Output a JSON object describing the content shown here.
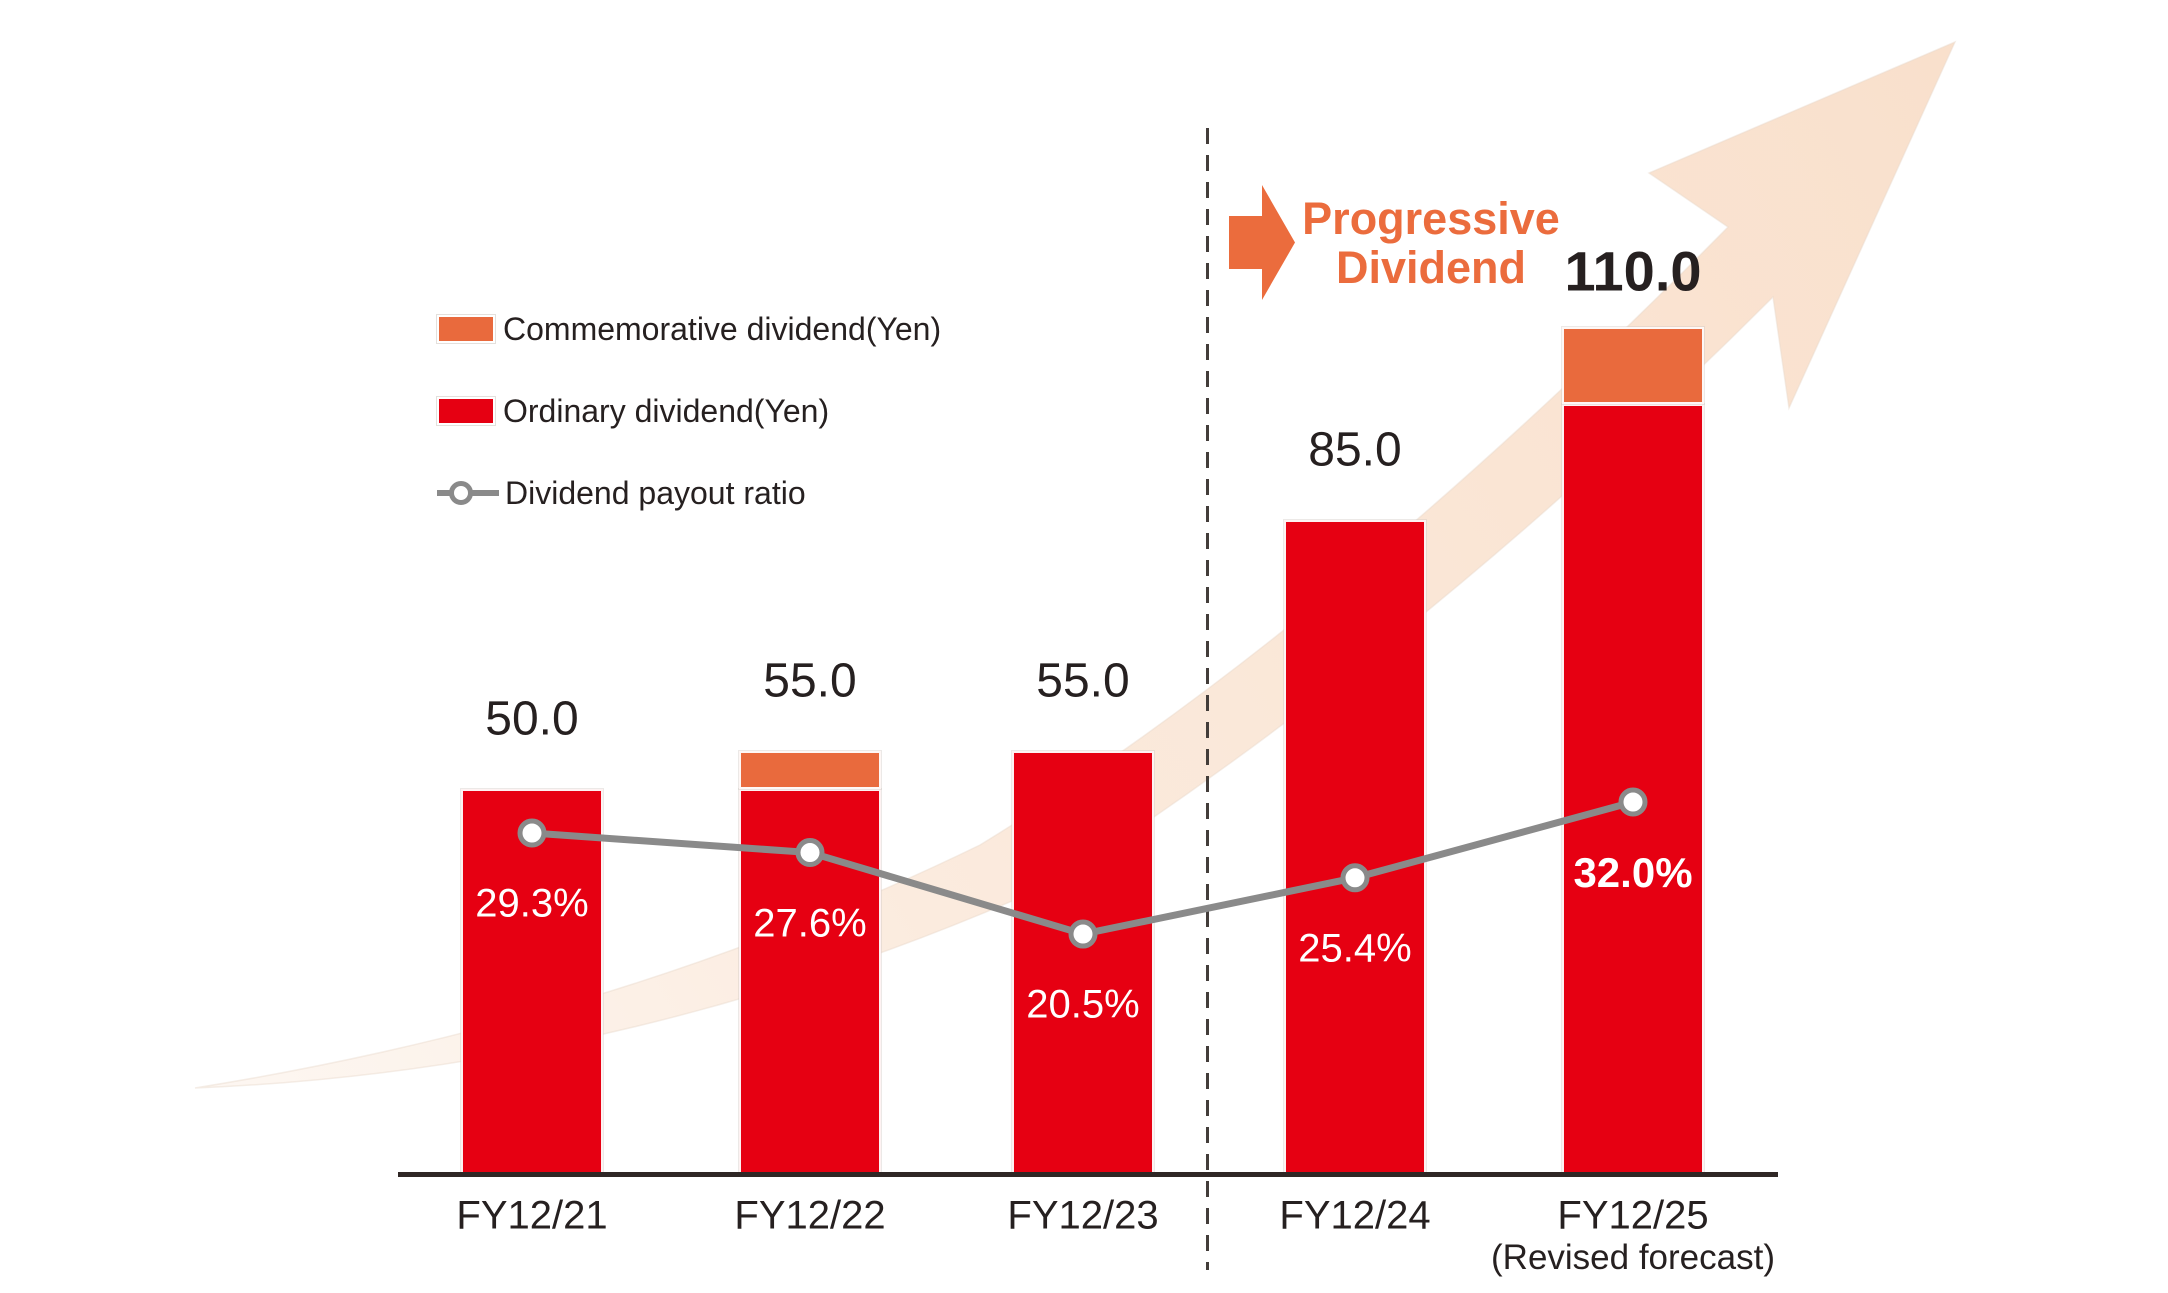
{
  "colors": {
    "ordinary_red": "#E60012",
    "commemorative_orange": "#E96A3D",
    "payout_ratio_gray": "#8A8A8A",
    "progressive_orange": "#EB6C3D",
    "growth_arrow_peach": "#F9E0CC",
    "axis_dark": "#2F2725",
    "text_dark": "#262020"
  },
  "legend": {
    "items": [
      {
        "label": "Commemorative dividend(Yen)",
        "swatch": "orange-rect"
      },
      {
        "label": "Ordinary dividend(Yen)",
        "swatch": "red-rect"
      },
      {
        "label": "Dividend payout ratio",
        "swatch": "gray-line-with-marker"
      }
    ]
  },
  "annotation": {
    "icon": "right-block-arrow-icon",
    "line1": "Progressive",
    "line2": "Dividend"
  },
  "chart_data": {
    "type": "bar",
    "subtype": "stacked-bars-with-line",
    "categories": [
      "FY12/21",
      "FY12/22",
      "FY12/23",
      "FY12/24",
      "FY12/25"
    ],
    "category_note": {
      "category_index": 4,
      "text": "(Revised forecast)"
    },
    "series": [
      {
        "name": "Ordinary dividend(Yen)",
        "type": "bar",
        "stack": "dividend",
        "color": "#E60012",
        "values": [
          50.0,
          50.0,
          55.0,
          85.0,
          100.0
        ]
      },
      {
        "name": "Commemorative dividend(Yen)",
        "type": "bar",
        "stack": "dividend",
        "color": "#E96A3D",
        "values": [
          0.0,
          5.0,
          0.0,
          0.0,
          10.0
        ]
      },
      {
        "name": "Dividend payout ratio",
        "type": "line",
        "unit": "%",
        "color": "#8A8A8A",
        "values": [
          29.3,
          27.6,
          20.5,
          25.4,
          32.0
        ]
      }
    ],
    "total_labels": [
      "50.0",
      "55.0",
      "55.0",
      "85.0",
      "110.0"
    ],
    "ratio_labels": [
      "29.3%",
      "27.6%",
      "20.5%",
      "25.4%",
      "32.0%"
    ],
    "emphasized_category_index": 4,
    "ylim": [
      0,
      120
    ],
    "grid": false,
    "legend_position": "upper-left",
    "separator_after_index": 2,
    "background_motif": "large upward growth arrow"
  }
}
